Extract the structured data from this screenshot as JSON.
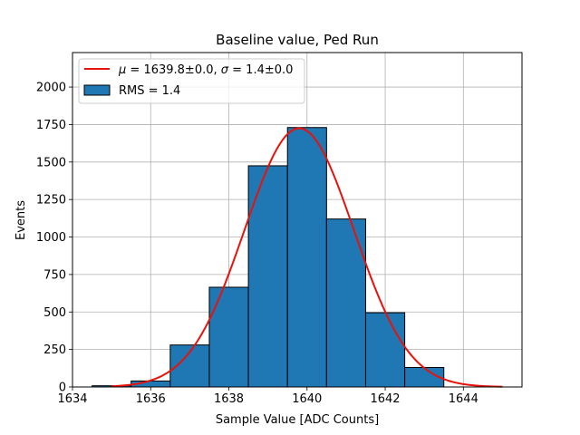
{
  "chart_data": {
    "type": "bar",
    "title": "Baseline value, Ped Run",
    "xlabel": "Sample Value [ADC Counts]",
    "ylabel": "Events",
    "xlim": [
      1634,
      1645.5
    ],
    "ylim": [
      0,
      2230
    ],
    "grid": true,
    "legend_position": "top-left",
    "bar_color": "#1f77b4",
    "fit_color": "#e8120c",
    "bins": [
      {
        "x0": 1634.5,
        "x1": 1635.5,
        "value": 8
      },
      {
        "x0": 1635.5,
        "x1": 1636.5,
        "value": 40
      },
      {
        "x0": 1636.5,
        "x1": 1637.5,
        "value": 280
      },
      {
        "x0": 1637.5,
        "x1": 1638.5,
        "value": 665
      },
      {
        "x0": 1638.5,
        "x1": 1639.5,
        "value": 1475
      },
      {
        "x0": 1639.5,
        "x1": 1640.5,
        "value": 1730
      },
      {
        "x0": 1640.5,
        "x1": 1641.5,
        "value": 1120
      },
      {
        "x0": 1641.5,
        "x1": 1642.5,
        "value": 495
      },
      {
        "x0": 1642.5,
        "x1": 1643.5,
        "value": 130
      }
    ],
    "fit": {
      "mu": 1639.8,
      "sigma": 1.4,
      "amplitude": 1725,
      "x_range": [
        1635,
        1645
      ]
    },
    "x_ticks": [
      "1634",
      "1636",
      "1638",
      "1640",
      "1642",
      "1644"
    ],
    "y_ticks": [
      "0",
      "250",
      "500",
      "750",
      "1000",
      "1250",
      "1500",
      "1750",
      "2000"
    ],
    "legend": {
      "fit_mu_symbol": "μ",
      "fit_mu_text": " = 1639.8±0.0, ",
      "fit_sigma_symbol": "σ",
      "fit_sigma_text": " = 1.4±0.0",
      "hist_label": "RMS = 1.4"
    }
  }
}
